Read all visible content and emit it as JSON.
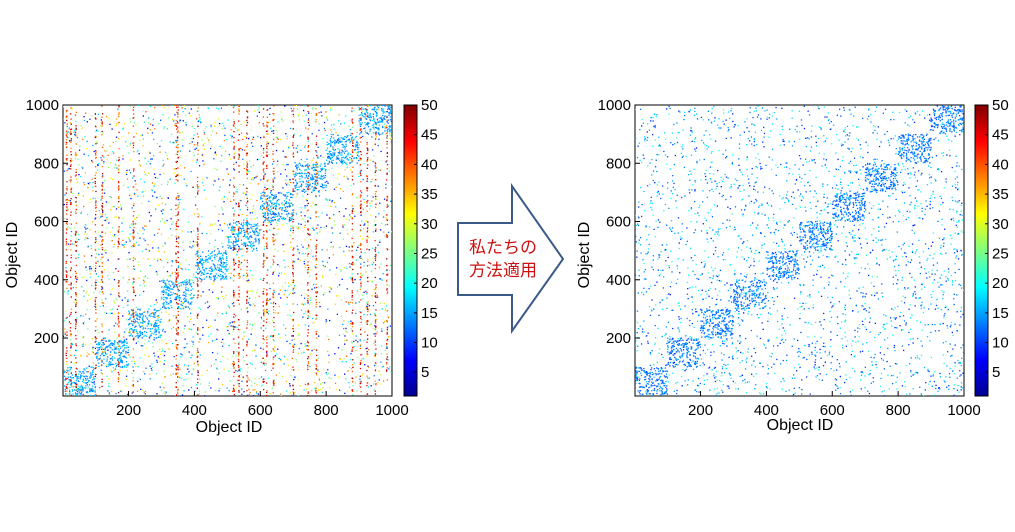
{
  "center_arrow": {
    "line1": "私たちの",
    "line2": "方法適用",
    "fill": "#ffffff",
    "stroke": "#3b5a8a",
    "text_color": "#cc1111"
  },
  "chart_data": [
    {
      "type": "scatter",
      "title": "",
      "xlabel": "Object ID",
      "ylabel": "Object ID",
      "xlim": [
        1,
        1000
      ],
      "ylim": [
        1,
        1000
      ],
      "xticks": [
        200,
        400,
        600,
        800,
        1000
      ],
      "yticks": [
        200,
        400,
        600,
        800,
        1000
      ],
      "colorbar": {
        "colormap": "jet",
        "range": [
          1,
          50
        ],
        "ticks": [
          5,
          10,
          15,
          20,
          25,
          30,
          35,
          40,
          45,
          50
        ]
      },
      "clusters": [
        {
          "range": [
            1,
            100
          ],
          "value": 15
        },
        {
          "range": [
            100,
            200
          ],
          "value": 15
        },
        {
          "range": [
            200,
            300
          ],
          "value": 15
        },
        {
          "range": [
            300,
            400
          ],
          "value": 15
        },
        {
          "range": [
            400,
            500
          ],
          "value": 15
        },
        {
          "range": [
            500,
            600
          ],
          "value": 15
        },
        {
          "range": [
            600,
            700
          ],
          "value": 15
        },
        {
          "range": [
            700,
            800
          ],
          "value": 15
        },
        {
          "range": [
            800,
            900
          ],
          "value": 15
        },
        {
          "range": [
            900,
            1000
          ],
          "value": 15
        }
      ],
      "noise": {
        "value_range": [
          5,
          40
        ]
      },
      "high_value_columns": [
        12,
        25,
        40,
        100,
        120,
        170,
        215,
        345,
        350,
        410,
        520,
        535,
        560,
        610,
        620,
        640,
        700,
        745,
        770,
        880,
        905,
        925,
        950,
        985
      ],
      "high_value_range": [
        36,
        50
      ],
      "grid": false
    },
    {
      "type": "scatter",
      "title": "",
      "xlabel": "Object ID",
      "ylabel": "Object ID",
      "xlim": [
        1,
        1000
      ],
      "ylim": [
        1,
        1000
      ],
      "xticks": [
        200,
        400,
        600,
        800,
        1000
      ],
      "yticks": [
        200,
        400,
        600,
        800,
        1000
      ],
      "colorbar": {
        "colormap": "jet",
        "range": [
          1,
          50
        ],
        "ticks": [
          5,
          10,
          15,
          20,
          25,
          30,
          35,
          40,
          45,
          50
        ]
      },
      "clusters": [
        {
          "range": [
            1,
            100
          ],
          "value": 13
        },
        {
          "range": [
            100,
            200
          ],
          "value": 13
        },
        {
          "range": [
            200,
            300
          ],
          "value": 13
        },
        {
          "range": [
            300,
            400
          ],
          "value": 13
        },
        {
          "range": [
            400,
            500
          ],
          "value": 13
        },
        {
          "range": [
            500,
            600
          ],
          "value": 13
        },
        {
          "range": [
            600,
            700
          ],
          "value": 13
        },
        {
          "range": [
            700,
            800
          ],
          "value": 13
        },
        {
          "range": [
            800,
            900
          ],
          "value": 13
        },
        {
          "range": [
            900,
            1000
          ],
          "value": 13
        }
      ],
      "noise": {
        "value_range": [
          8,
          22
        ]
      },
      "high_value_columns": [],
      "grid": false
    }
  ]
}
